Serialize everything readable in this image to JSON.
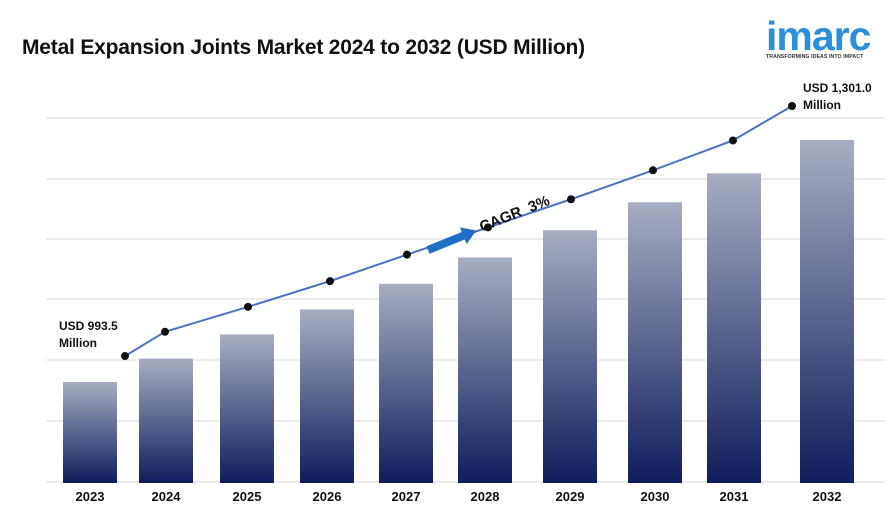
{
  "title": "Metal Expansion Joints Market 2024 to 2032 (USD Million)",
  "logo": {
    "word": "imarc",
    "tagline": "TRANSFORMING IDEAS INTO IMPACT"
  },
  "annotations": {
    "start_line1": "USD 993.5",
    "start_line2": "Million",
    "end_line1": "USD 1,301.0",
    "end_line2": "Million",
    "cagr": "CAGR  3%"
  },
  "colors": {
    "bar_top": "#a7adc2",
    "bar_bottom": "#0e1d5c",
    "line": "#4a74c0",
    "marker": "#111111",
    "arrow": "#1f6fc5",
    "logo": "#2d8fd8"
  },
  "chart_data": {
    "type": "bar",
    "title": "Metal Expansion Joints Market 2024 to 2032 (USD Million)",
    "categories": [
      "2023",
      "2024",
      "2025",
      "2026",
      "2027",
      "2028",
      "2029",
      "2030",
      "2031",
      "2032"
    ],
    "values": [
      993.5,
      1023.3,
      1054.0,
      1085.6,
      1118.2,
      1151.7,
      1186.3,
      1221.9,
      1258.6,
      1301.0
    ],
    "trend_line": true,
    "grid": true,
    "xlabel": "",
    "ylabel": ""
  }
}
